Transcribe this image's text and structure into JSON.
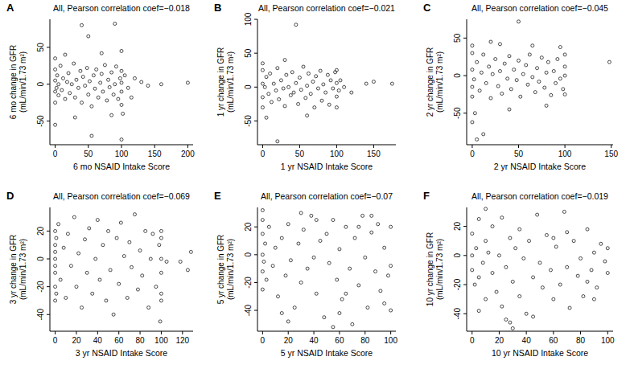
{
  "chart_data": [
    {
      "type": "scatter",
      "label": "A",
      "title": "All, Pearson correlation coef=−0.018",
      "x_label": "6 mo NSAID Intake Score",
      "y_label": [
        "6 mo change in GFR",
        "(mL/min/1.73 m²)"
      ],
      "x": [
        0,
        0,
        0,
        0,
        0,
        2,
        3,
        5,
        5,
        8,
        10,
        12,
        15,
        18,
        20,
        22,
        25,
        28,
        30,
        32,
        35,
        38,
        40,
        42,
        45,
        48,
        50,
        52,
        55,
        58,
        60,
        62,
        65,
        68,
        70,
        72,
        75,
        78,
        80,
        82,
        85,
        88,
        90,
        92,
        95,
        98,
        100,
        100,
        100,
        100,
        105,
        110,
        115,
        120,
        130,
        140,
        160,
        200,
        40,
        90,
        50,
        100,
        55,
        0,
        30,
        70,
        15,
        85,
        100,
        102
      ],
      "values": [
        5,
        -10,
        20,
        -25,
        35,
        -5,
        12,
        -15,
        0,
        25,
        -8,
        8,
        -20,
        3,
        15,
        -12,
        0,
        28,
        -18,
        6,
        -5,
        18,
        -25,
        10,
        -2,
        22,
        -14,
        4,
        -30,
        12,
        -6,
        20,
        -18,
        2,
        14,
        -10,
        26,
        -22,
        6,
        -4,
        16,
        -14,
        0,
        24,
        -20,
        8,
        -10,
        18,
        -28,
        2,
        12,
        -5,
        -18,
        8,
        3,
        -2,
        0,
        2,
        80,
        82,
        65,
        -75,
        -70,
        -55,
        -45,
        42,
        40,
        -42,
        45,
        -40
      ],
      "xlim": [
        -8,
        208
      ],
      "ylim": [
        -82,
        88
      ],
      "xticks": [
        0,
        50,
        100,
        150,
        200
      ],
      "yticks": [
        -50,
        0,
        50
      ],
      "color": "#000000",
      "marker": "circle-open",
      "grid": false
    },
    {
      "type": "scatter",
      "label": "B",
      "title": "All, Pearson correlation coef=−0.021",
      "x_label": "1 yr NSAID Intake Score",
      "y_label": [
        "1 yr change in GFR",
        "(mL/min/1.73 m²)"
      ],
      "x": [
        0,
        0,
        0,
        0,
        0,
        3,
        5,
        8,
        10,
        12,
        15,
        18,
        20,
        22,
        25,
        28,
        30,
        32,
        35,
        38,
        40,
        42,
        45,
        48,
        50,
        52,
        55,
        58,
        60,
        62,
        65,
        68,
        70,
        72,
        75,
        78,
        80,
        82,
        85,
        88,
        90,
        92,
        95,
        98,
        100,
        100,
        100,
        100,
        103,
        105,
        110,
        120,
        140,
        150,
        175,
        45,
        5,
        20,
        30,
        60
      ],
      "values": [
        5,
        -15,
        25,
        -30,
        35,
        0,
        15,
        -10,
        20,
        -22,
        5,
        -5,
        28,
        -18,
        10,
        -2,
        -28,
        18,
        0,
        -12,
        22,
        -8,
        6,
        -25,
        14,
        -4,
        30,
        -16,
        2,
        20,
        -10,
        8,
        -30,
        16,
        -2,
        24,
        -20,
        4,
        -8,
        18,
        -26,
        10,
        -2,
        22,
        -14,
        6,
        -30,
        25,
        -5,
        10,
        0,
        -8,
        5,
        8,
        5,
        92,
        -45,
        -80,
        40,
        -42
      ],
      "xlim": [
        -7,
        180
      ],
      "ylim": [
        -85,
        100
      ],
      "xticks": [
        0,
        50,
        100,
        150
      ],
      "yticks": [
        -50,
        0,
        50,
        100
      ],
      "color": "#000000",
      "marker": "circle-open",
      "grid": false
    },
    {
      "type": "scatter",
      "label": "C",
      "title": "All, Pearson correlation coef=−0.045",
      "x_label": "2 yr NSAID Intake Score",
      "y_label": [
        "2 yr change in GFR",
        "(mL/min/1.73 m²)"
      ],
      "x": [
        0,
        0,
        0,
        0,
        0,
        2,
        5,
        8,
        10,
        12,
        15,
        18,
        20,
        22,
        25,
        28,
        30,
        32,
        35,
        38,
        40,
        42,
        45,
        48,
        50,
        52,
        55,
        58,
        60,
        62,
        65,
        68,
        70,
        72,
        75,
        78,
        80,
        82,
        85,
        88,
        90,
        92,
        95,
        98,
        100,
        100,
        100,
        100,
        148,
        50,
        0,
        5,
        12,
        30,
        65,
        40,
        80,
        3,
        95,
        20
      ],
      "values": [
        8,
        -15,
        30,
        -28,
        40,
        -5,
        18,
        -20,
        4,
        28,
        -10,
        12,
        -30,
        2,
        22,
        -14,
        6,
        -24,
        16,
        -4,
        26,
        -18,
        8,
        -6,
        20,
        -28,
        2,
        14,
        -12,
        28,
        -2,
        -22,
        10,
        -8,
        24,
        -16,
        4,
        18,
        -26,
        6,
        -10,
        22,
        -4,
        -18,
        12,
        -25,
        0,
        28,
        18,
        72,
        -62,
        -85,
        -78,
        42,
        40,
        -45,
        -40,
        -50,
        38,
        45
      ],
      "xlim": [
        -6,
        152
      ],
      "ylim": [
        -92,
        75
      ],
      "xticks": [
        0,
        50,
        100,
        150
      ],
      "yticks": [
        -50,
        0,
        50
      ],
      "color": "#000000",
      "marker": "circle-open",
      "grid": false
    },
    {
      "type": "scatter",
      "label": "D",
      "title": "All, Pearson correlation coef=−0.069",
      "x_label": "3 yr NSAID Intake Score",
      "y_label": [
        "3 yr change in GFR",
        "(mL/min/1.73 m²)"
      ],
      "x": [
        0,
        0,
        0,
        0,
        0,
        0,
        0,
        0,
        1,
        1,
        3,
        5,
        8,
        10,
        12,
        15,
        18,
        20,
        22,
        25,
        28,
        30,
        32,
        35,
        38,
        40,
        42,
        45,
        48,
        50,
        52,
        55,
        58,
        60,
        62,
        65,
        68,
        70,
        72,
        75,
        78,
        80,
        82,
        85,
        88,
        90,
        92,
        95,
        98,
        100,
        100,
        100,
        100,
        100,
        100,
        99,
        105,
        118,
        125,
        128
      ],
      "values": [
        0,
        10,
        -10,
        20,
        -20,
        -30,
        5,
        -5,
        15,
        -25,
        25,
        -15,
        8,
        -28,
        18,
        -5,
        30,
        -20,
        4,
        -35,
        14,
        -10,
        22,
        -25,
        0,
        28,
        -15,
        10,
        -30,
        20,
        -8,
        -40,
        15,
        -18,
        26,
        2,
        -28,
        12,
        -6,
        32,
        -22,
        6,
        -12,
        20,
        -35,
        0,
        18,
        -20,
        10,
        -25,
        0,
        15,
        -10,
        -30,
        20,
        -45,
        -2,
        -2,
        -8,
        5
      ],
      "xlim": [
        -5,
        130
      ],
      "ylim": [
        -52,
        37
      ],
      "xticks": [
        0,
        20,
        40,
        60,
        80,
        100,
        120
      ],
      "yticks": [
        -40,
        -20,
        0,
        20
      ],
      "color": "#000000",
      "marker": "circle-open",
      "grid": false
    },
    {
      "type": "scatter",
      "label": "E",
      "title": "All, Pearson correlation coef=−0.07",
      "x_label": "5 yr NSAID Intake Score",
      "y_label": [
        "5 yr change in GFR",
        "(mL/min/1.73 m²)"
      ],
      "x": [
        0,
        0,
        0,
        0,
        0,
        0,
        1,
        2,
        3,
        5,
        8,
        10,
        12,
        15,
        18,
        20,
        22,
        25,
        28,
        30,
        32,
        35,
        38,
        40,
        42,
        45,
        48,
        50,
        52,
        55,
        58,
        60,
        62,
        65,
        68,
        70,
        72,
        75,
        78,
        80,
        82,
        85,
        88,
        90,
        92,
        95,
        98,
        100,
        100,
        100,
        20,
        55,
        60,
        95,
        30,
        85,
        15,
        65,
        42,
        75
      ],
      "values": [
        0,
        15,
        -12,
        25,
        -25,
        32,
        -5,
        8,
        -18,
        20,
        -8,
        5,
        -30,
        12,
        -15,
        22,
        -4,
        -38,
        8,
        -20,
        18,
        -10,
        28,
        -2,
        -28,
        10,
        -45,
        15,
        -6,
        25,
        -18,
        4,
        -32,
        20,
        -10,
        -50,
        12,
        -22,
        28,
        -2,
        -38,
        16,
        -12,
        22,
        -26,
        5,
        -15,
        20,
        -8,
        -40,
        -48,
        -52,
        -42,
        -35,
        30,
        28,
        -42,
        -28,
        25,
        20
      ],
      "xlim": [
        -4,
        104
      ],
      "ylim": [
        -55,
        34
      ],
      "xticks": [
        0,
        20,
        40,
        60,
        80,
        100
      ],
      "yticks": [
        -40,
        -20,
        0,
        20
      ],
      "color": "#000000",
      "marker": "circle-open",
      "grid": false
    },
    {
      "type": "scatter",
      "label": "F",
      "title": "All, Pearson correlation coef=−0.019",
      "x_label": "10 yr NSAID Intake Score",
      "y_label": [
        "10 yr change in GFR",
        "(mL/min/1.73 m²)"
      ],
      "x": [
        0,
        0,
        0,
        2,
        3,
        5,
        5,
        8,
        10,
        10,
        12,
        15,
        15,
        18,
        20,
        22,
        22,
        25,
        28,
        28,
        30,
        32,
        35,
        35,
        38,
        40,
        42,
        45,
        48,
        50,
        52,
        55,
        58,
        60,
        62,
        65,
        68,
        70,
        72,
        75,
        78,
        80,
        82,
        85,
        88,
        90,
        92,
        95,
        98,
        100,
        10,
        25,
        30,
        45,
        60,
        70,
        85,
        90,
        5,
        100
      ],
      "values": [
        0,
        -10,
        15,
        -20,
        5,
        25,
        -15,
        -5,
        10,
        -30,
        2,
        -12,
        20,
        -25,
        0,
        -35,
        26,
        -8,
        -46,
        12,
        -18,
        5,
        -28,
        18,
        -2,
        -40,
        10,
        -15,
        28,
        -5,
        -22,
        14,
        -10,
        -30,
        6,
        -20,
        30,
        -8,
        -36,
        10,
        -14,
        -2,
        -28,
        18,
        -10,
        2,
        -22,
        8,
        -4,
        -12,
        32,
        -44,
        -50,
        -42,
        12,
        16,
        -18,
        -30,
        -38,
        5
      ],
      "xlim": [
        -4,
        104
      ],
      "ylim": [
        -52,
        33
      ],
      "xticks": [
        0,
        20,
        40,
        60,
        80,
        100
      ],
      "yticks": [
        -40,
        -20,
        0,
        20
      ],
      "color": "#000000",
      "marker": "circle-open",
      "grid": false
    }
  ]
}
